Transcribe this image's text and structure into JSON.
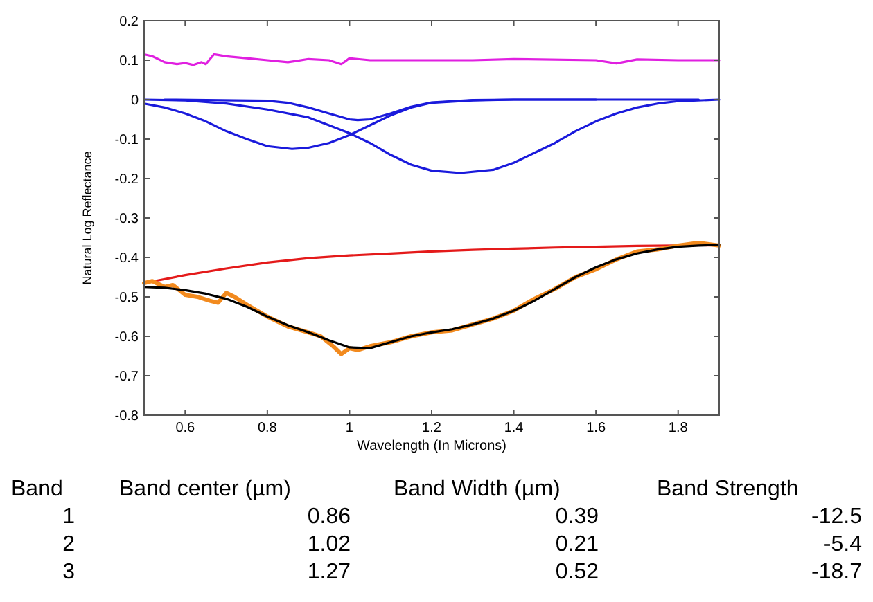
{
  "chart_data": [
    {
      "type": "line",
      "xlabel": "Wavelength (In Microns)",
      "ylabel": "Natural Log Reflectance",
      "xlim": [
        0.5,
        1.9
      ],
      "ylim": [
        -0.8,
        0.2
      ],
      "xticks": [
        0.6,
        0.8,
        1,
        1.2,
        1.4,
        1.6,
        1.8
      ],
      "yticks": [
        -0.8,
        -0.7,
        -0.6,
        -0.5,
        -0.4,
        -0.3,
        -0.2,
        -0.1,
        0,
        0.1,
        0.2
      ],
      "grid": false,
      "marker": "none",
      "line_style": "solid",
      "series": [
        {
          "color": "#e020e0",
          "x": [
            0.5,
            0.52,
            0.55,
            0.58,
            0.6,
            0.62,
            0.64,
            0.65,
            0.67,
            0.7,
            0.75,
            0.8,
            0.85,
            0.87,
            0.9,
            0.95,
            0.98,
            1.0,
            1.05,
            1.1,
            1.3,
            1.4,
            1.6,
            1.65,
            1.7,
            1.8,
            1.9
          ],
          "values": [
            0.115,
            0.11,
            0.095,
            0.09,
            0.093,
            0.088,
            0.095,
            0.09,
            0.115,
            0.11,
            0.105,
            0.1,
            0.095,
            0.098,
            0.103,
            0.1,
            0.09,
            0.105,
            0.1,
            0.1,
            0.1,
            0.103,
            0.1,
            0.092,
            0.102,
            0.1,
            0.1
          ]
        },
        {
          "color": "#1a1adc",
          "x": [
            0.5,
            0.55,
            0.6,
            0.65,
            0.7,
            0.75,
            0.8,
            0.86,
            0.9,
            0.95,
            1.0,
            1.05,
            1.1,
            1.15,
            1.2,
            1.3,
            1.4,
            1.85
          ],
          "values": [
            -0.01,
            -0.02,
            -0.035,
            -0.055,
            -0.08,
            -0.1,
            -0.118,
            -0.125,
            -0.122,
            -0.11,
            -0.09,
            -0.065,
            -0.04,
            -0.02,
            -0.008,
            -0.002,
            0,
            0
          ]
        },
        {
          "color": "#1a1adc",
          "x": [
            0.55,
            0.8,
            0.85,
            0.9,
            0.95,
            1.0,
            1.02,
            1.05,
            1.1,
            1.15,
            1.2,
            1.3,
            1.4,
            1.6
          ],
          "values": [
            0,
            -0.003,
            -0.008,
            -0.02,
            -0.035,
            -0.05,
            -0.052,
            -0.05,
            -0.035,
            -0.018,
            -0.007,
            -0.001,
            0,
            0
          ]
        },
        {
          "color": "#1a1adc",
          "x": [
            0.5,
            0.6,
            0.7,
            0.8,
            0.9,
            0.95,
            1.0,
            1.05,
            1.1,
            1.15,
            1.2,
            1.27,
            1.35,
            1.4,
            1.45,
            1.5,
            1.55,
            1.6,
            1.65,
            1.7,
            1.75,
            1.8,
            1.9
          ],
          "values": [
            0,
            -0.002,
            -0.01,
            -0.025,
            -0.045,
            -0.065,
            -0.085,
            -0.11,
            -0.14,
            -0.165,
            -0.18,
            -0.186,
            -0.178,
            -0.16,
            -0.135,
            -0.11,
            -0.08,
            -0.055,
            -0.035,
            -0.02,
            -0.01,
            -0.004,
            0
          ]
        },
        {
          "color": "#e41a1a",
          "x": [
            0.5,
            0.6,
            0.7,
            0.8,
            0.9,
            1.0,
            1.1,
            1.2,
            1.3,
            1.4,
            1.5,
            1.6,
            1.7,
            1.8,
            1.9
          ],
          "values": [
            -0.465,
            -0.445,
            -0.428,
            -0.413,
            -0.402,
            -0.395,
            -0.39,
            -0.385,
            -0.381,
            -0.378,
            -0.375,
            -0.373,
            -0.371,
            -0.37,
            -0.369
          ]
        },
        {
          "color": "#f28a1e",
          "x": [
            0.5,
            0.52,
            0.55,
            0.57,
            0.6,
            0.63,
            0.66,
            0.68,
            0.7,
            0.72,
            0.75,
            0.8,
            0.85,
            0.9,
            0.93,
            0.96,
            0.98,
            1.0,
            1.02,
            1.05,
            1.1,
            1.15,
            1.2,
            1.25,
            1.3,
            1.35,
            1.4,
            1.45,
            1.5,
            1.55,
            1.6,
            1.65,
            1.7,
            1.75,
            1.8,
            1.85,
            1.9
          ],
          "values": [
            -0.465,
            -0.46,
            -0.475,
            -0.47,
            -0.495,
            -0.5,
            -0.51,
            -0.515,
            -0.49,
            -0.5,
            -0.52,
            -0.55,
            -0.575,
            -0.59,
            -0.6,
            -0.625,
            -0.645,
            -0.63,
            -0.635,
            -0.625,
            -0.615,
            -0.6,
            -0.59,
            -0.585,
            -0.57,
            -0.555,
            -0.535,
            -0.505,
            -0.48,
            -0.45,
            -0.43,
            -0.405,
            -0.385,
            -0.38,
            -0.37,
            -0.363,
            -0.37
          ]
        },
        {
          "color": "#000000",
          "x": [
            0.5,
            0.55,
            0.6,
            0.65,
            0.7,
            0.75,
            0.8,
            0.85,
            0.9,
            0.95,
            1.0,
            1.05,
            1.1,
            1.15,
            1.2,
            1.25,
            1.3,
            1.35,
            1.4,
            1.45,
            1.5,
            1.55,
            1.6,
            1.65,
            1.7,
            1.75,
            1.8,
            1.85,
            1.9
          ],
          "values": [
            -0.475,
            -0.477,
            -0.483,
            -0.492,
            -0.505,
            -0.525,
            -0.55,
            -0.572,
            -0.59,
            -0.61,
            -0.628,
            -0.63,
            -0.615,
            -0.6,
            -0.59,
            -0.582,
            -0.57,
            -0.555,
            -0.535,
            -0.51,
            -0.48,
            -0.45,
            -0.425,
            -0.405,
            -0.39,
            -0.38,
            -0.373,
            -0.37,
            -0.368
          ]
        }
      ]
    },
    {
      "type": "other",
      "categories": [
        "Band",
        "Band center (µm)",
        "Band Width (µm)",
        "Band Strength"
      ],
      "annotations": [
        "1",
        "0.86",
        "0.39",
        "-12.5",
        "2",
        "1.02",
        "0.21",
        "-5.4",
        "3",
        "1.27",
        "0.52",
        "-18.7"
      ]
    }
  ]
}
